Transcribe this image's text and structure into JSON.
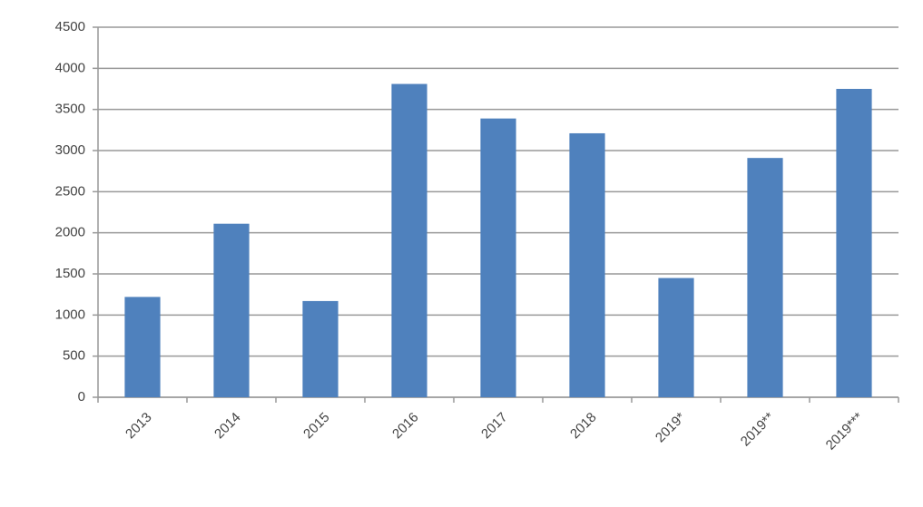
{
  "chart_data": {
    "type": "bar",
    "categories": [
      "2013",
      "2014",
      "2015",
      "2016",
      "2017",
      "2018",
      "2019*",
      "2019**",
      "2019***"
    ],
    "values": [
      1220,
      2110,
      1170,
      3810,
      3390,
      3210,
      1450,
      2910,
      3750
    ],
    "color": "#4f81bd",
    "ylim": [
      0,
      4500
    ],
    "yticks": [
      0,
      500,
      1000,
      1500,
      2000,
      2500,
      3000,
      3500,
      4000,
      4500
    ],
    "grid": true
  }
}
